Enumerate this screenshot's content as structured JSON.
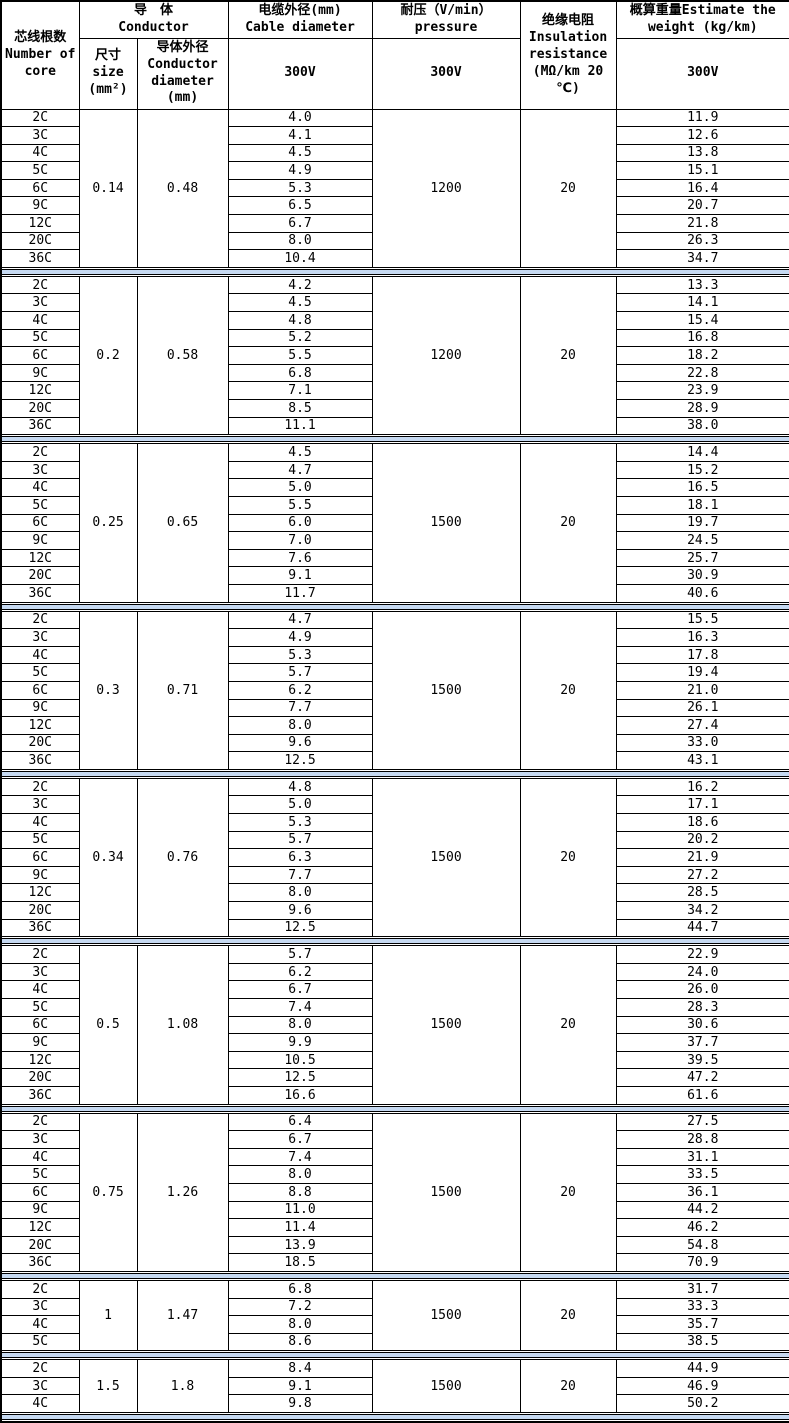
{
  "header": {
    "core": "芯线根数\nNumber of\ncore",
    "conductor_group": "导　体\nConductor",
    "size": "尺寸\nsize\n(mm²)",
    "conductor_diameter": "导体外径\nConductor\ndiameter\n(mm)",
    "cable_diameter": "电缆外径(mm)\nCable diameter",
    "pressure": "耐压（V/min）\npressure",
    "insulation": "绝缘电阻\nInsulation\nresistance\n(MΩ/km 20\n℃)",
    "weight": "概算重量Estimate the\nweight (kg/km)",
    "cable_diameter_voltage": "300V",
    "pressure_voltage": "300V",
    "weight_voltage": "300V"
  },
  "colors": {
    "separator_band": "#c6d9f1",
    "border": "#000000",
    "background": "#ffffff",
    "text": "#000000"
  },
  "blocks": [
    {
      "size": "0.14",
      "conductor_diameter": "0.48",
      "pressure": "1200",
      "insulation_resistance": "20",
      "rows": [
        {
          "core": "2C",
          "cable_diameter": "4.0",
          "weight": "11.9"
        },
        {
          "core": "3C",
          "cable_diameter": "4.1",
          "weight": "12.6"
        },
        {
          "core": "4C",
          "cable_diameter": "4.5",
          "weight": "13.8"
        },
        {
          "core": "5C",
          "cable_diameter": "4.9",
          "weight": "15.1"
        },
        {
          "core": "6C",
          "cable_diameter": "5.3",
          "weight": "16.4"
        },
        {
          "core": "9C",
          "cable_diameter": "6.5",
          "weight": "20.7"
        },
        {
          "core": "12C",
          "cable_diameter": "6.7",
          "weight": "21.8"
        },
        {
          "core": "20C",
          "cable_diameter": "8.0",
          "weight": "26.3"
        },
        {
          "core": "36C",
          "cable_diameter": "10.4",
          "weight": "34.7"
        }
      ]
    },
    {
      "size": "0.2",
      "conductor_diameter": "0.58",
      "pressure": "1200",
      "insulation_resistance": "20",
      "rows": [
        {
          "core": "2C",
          "cable_diameter": "4.2",
          "weight": "13.3"
        },
        {
          "core": "3C",
          "cable_diameter": "4.5",
          "weight": "14.1"
        },
        {
          "core": "4C",
          "cable_diameter": "4.8",
          "weight": "15.4"
        },
        {
          "core": "5C",
          "cable_diameter": "5.2",
          "weight": "16.8"
        },
        {
          "core": "6C",
          "cable_diameter": "5.5",
          "weight": "18.2"
        },
        {
          "core": "9C",
          "cable_diameter": "6.8",
          "weight": "22.8"
        },
        {
          "core": "12C",
          "cable_diameter": "7.1",
          "weight": "23.9"
        },
        {
          "core": "20C",
          "cable_diameter": "8.5",
          "weight": "28.9"
        },
        {
          "core": "36C",
          "cable_diameter": "11.1",
          "weight": "38.0"
        }
      ]
    },
    {
      "size": "0.25",
      "conductor_diameter": "0.65",
      "pressure": "1500",
      "insulation_resistance": "20",
      "rows": [
        {
          "core": "2C",
          "cable_diameter": "4.5",
          "weight": "14.4"
        },
        {
          "core": "3C",
          "cable_diameter": "4.7",
          "weight": "15.2"
        },
        {
          "core": "4C",
          "cable_diameter": "5.0",
          "weight": "16.5"
        },
        {
          "core": "5C",
          "cable_diameter": "5.5",
          "weight": "18.1"
        },
        {
          "core": "6C",
          "cable_diameter": "6.0",
          "weight": "19.7"
        },
        {
          "core": "9C",
          "cable_diameter": "7.0",
          "weight": "24.5"
        },
        {
          "core": "12C",
          "cable_diameter": "7.6",
          "weight": "25.7"
        },
        {
          "core": "20C",
          "cable_diameter": "9.1",
          "weight": "30.9"
        },
        {
          "core": "36C",
          "cable_diameter": "11.7",
          "weight": "40.6"
        }
      ]
    },
    {
      "size": "0.3",
      "conductor_diameter": "0.71",
      "pressure": "1500",
      "insulation_resistance": "20",
      "rows": [
        {
          "core": "2C",
          "cable_diameter": "4.7",
          "weight": "15.5"
        },
        {
          "core": "3C",
          "cable_diameter": "4.9",
          "weight": "16.3"
        },
        {
          "core": "4C",
          "cable_diameter": "5.3",
          "weight": "17.8"
        },
        {
          "core": "5C",
          "cable_diameter": "5.7",
          "weight": "19.4"
        },
        {
          "core": "6C",
          "cable_diameter": "6.2",
          "weight": "21.0"
        },
        {
          "core": "9C",
          "cable_diameter": "7.7",
          "weight": "26.1"
        },
        {
          "core": "12C",
          "cable_diameter": "8.0",
          "weight": "27.4"
        },
        {
          "core": "20C",
          "cable_diameter": "9.6",
          "weight": "33.0"
        },
        {
          "core": "36C",
          "cable_diameter": "12.5",
          "weight": "43.1"
        }
      ]
    },
    {
      "size": "0.34",
      "conductor_diameter": "0.76",
      "pressure": "1500",
      "insulation_resistance": "20",
      "rows": [
        {
          "core": "2C",
          "cable_diameter": "4.8",
          "weight": "16.2"
        },
        {
          "core": "3C",
          "cable_diameter": "5.0",
          "weight": "17.1"
        },
        {
          "core": "4C",
          "cable_diameter": "5.3",
          "weight": "18.6"
        },
        {
          "core": "5C",
          "cable_diameter": "5.7",
          "weight": "20.2"
        },
        {
          "core": "6C",
          "cable_diameter": "6.3",
          "weight": "21.9"
        },
        {
          "core": "9C",
          "cable_diameter": "7.7",
          "weight": "27.2"
        },
        {
          "core": "12C",
          "cable_diameter": "8.0",
          "weight": "28.5"
        },
        {
          "core": "20C",
          "cable_diameter": "9.6",
          "weight": "34.2"
        },
        {
          "core": "36C",
          "cable_diameter": "12.5",
          "weight": "44.7"
        }
      ]
    },
    {
      "size": "0.5",
      "conductor_diameter": "1.08",
      "pressure": "1500",
      "insulation_resistance": "20",
      "rows": [
        {
          "core": "2C",
          "cable_diameter": "5.7",
          "weight": "22.9"
        },
        {
          "core": "3C",
          "cable_diameter": "6.2",
          "weight": "24.0"
        },
        {
          "core": "4C",
          "cable_diameter": "6.7",
          "weight": "26.0"
        },
        {
          "core": "5C",
          "cable_diameter": "7.4",
          "weight": "28.3"
        },
        {
          "core": "6C",
          "cable_diameter": "8.0",
          "weight": "30.6"
        },
        {
          "core": "9C",
          "cable_diameter": "9.9",
          "weight": "37.7"
        },
        {
          "core": "12C",
          "cable_diameter": "10.5",
          "weight": "39.5"
        },
        {
          "core": "20C",
          "cable_diameter": "12.5",
          "weight": "47.2"
        },
        {
          "core": "36C",
          "cable_diameter": "16.6",
          "weight": "61.6"
        }
      ]
    },
    {
      "size": "0.75",
      "conductor_diameter": "1.26",
      "pressure": "1500",
      "insulation_resistance": "20",
      "rows": [
        {
          "core": "2C",
          "cable_diameter": "6.4",
          "weight": "27.5"
        },
        {
          "core": "3C",
          "cable_diameter": "6.7",
          "weight": "28.8"
        },
        {
          "core": "4C",
          "cable_diameter": "7.4",
          "weight": "31.1"
        },
        {
          "core": "5C",
          "cable_diameter": "8.0",
          "weight": "33.5"
        },
        {
          "core": "6C",
          "cable_diameter": "8.8",
          "weight": "36.1"
        },
        {
          "core": "9C",
          "cable_diameter": "11.0",
          "weight": "44.2"
        },
        {
          "core": "12C",
          "cable_diameter": "11.4",
          "weight": "46.2"
        },
        {
          "core": "20C",
          "cable_diameter": "13.9",
          "weight": "54.8"
        },
        {
          "core": "36C",
          "cable_diameter": "18.5",
          "weight": "70.9"
        }
      ]
    },
    {
      "size": "1",
      "conductor_diameter": "1.47",
      "pressure": "1500",
      "insulation_resistance": "20",
      "rows": [
        {
          "core": "2C",
          "cable_diameter": "6.8",
          "weight": "31.7"
        },
        {
          "core": "3C",
          "cable_diameter": "7.2",
          "weight": "33.3"
        },
        {
          "core": "4C",
          "cable_diameter": "8.0",
          "weight": "35.7"
        },
        {
          "core": "5C",
          "cable_diameter": "8.6",
          "weight": "38.5"
        }
      ]
    },
    {
      "size": "1.5",
      "conductor_diameter": "1.8",
      "pressure": "1500",
      "insulation_resistance": "20",
      "rows": [
        {
          "core": "2C",
          "cable_diameter": "8.4",
          "weight": "44.9"
        },
        {
          "core": "3C",
          "cable_diameter": "9.1",
          "weight": "46.9"
        },
        {
          "core": "4C",
          "cable_diameter": "9.8",
          "weight": "50.2"
        }
      ]
    }
  ]
}
